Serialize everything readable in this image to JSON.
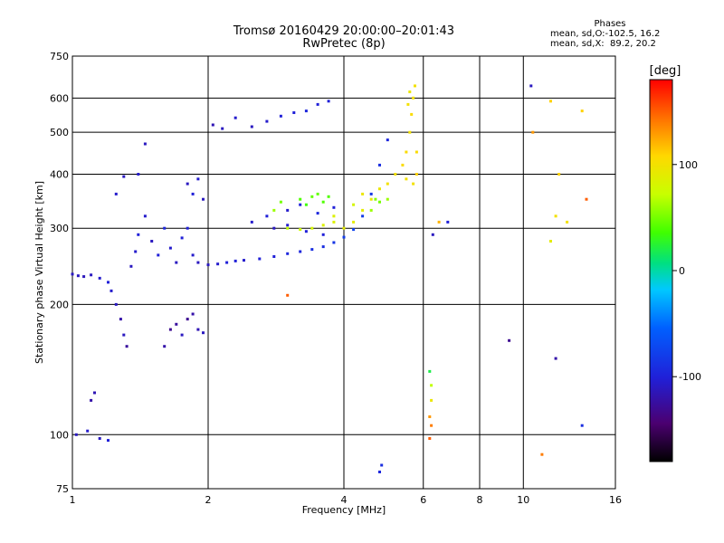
{
  "header": {
    "title_line1": "Tromsø 20160429 20:00:00–20:01:43",
    "title_line2": "RwPretec (8p)"
  },
  "phases_box": {
    "title": "Phases",
    "line1": "mean, sd,O:-102.5, 16.2",
    "line2": "mean, sd,X:  89.2, 20.2"
  },
  "colorbar": {
    "unit": "[deg]",
    "ticks": [
      100,
      0,
      -100
    ],
    "range": [
      -180,
      180
    ]
  },
  "chart_data": {
    "type": "scatter",
    "title": "Tromsø 20160429 20:00:00–20:01:43",
    "subtitle": "RwPretec (8p)",
    "xlabel": "Frequency [MHz]",
    "ylabel": "Stationary phase Virtual Height [km]",
    "xscale": "log",
    "yscale": "log",
    "xlim": [
      1,
      16
    ],
    "ylim": [
      75,
      750
    ],
    "xticks": [
      1,
      2,
      4,
      6,
      8,
      10,
      16
    ],
    "yticks": [
      75,
      100,
      200,
      300,
      400,
      500,
      600,
      750
    ],
    "grid": true,
    "colorbar_label": "[deg]",
    "series": [
      {
        "mode": "O",
        "points": [
          [
            1.0,
            235,
            -110
          ],
          [
            1.03,
            233,
            -110
          ],
          [
            1.06,
            232,
            -112
          ],
          [
            1.1,
            234,
            -110
          ],
          [
            1.15,
            230,
            -105
          ],
          [
            1.2,
            225,
            -100
          ],
          [
            1.22,
            215,
            -105
          ],
          [
            1.25,
            200,
            -110
          ],
          [
            1.28,
            185,
            -120
          ],
          [
            1.3,
            170,
            -110
          ],
          [
            1.32,
            160,
            -125
          ],
          [
            1.35,
            245,
            -110
          ],
          [
            1.38,
            265,
            -105
          ],
          [
            1.4,
            290,
            -100
          ],
          [
            1.45,
            320,
            -105
          ],
          [
            1.5,
            280,
            -110
          ],
          [
            1.55,
            260,
            -100
          ],
          [
            1.6,
            300,
            -95
          ],
          [
            1.65,
            270,
            -105
          ],
          [
            1.7,
            250,
            -110
          ],
          [
            1.75,
            285,
            -100
          ],
          [
            1.8,
            300,
            -100
          ],
          [
            1.85,
            260,
            -105
          ],
          [
            1.9,
            250,
            -110
          ],
          [
            2.0,
            247,
            -110
          ],
          [
            2.1,
            248,
            -105
          ],
          [
            2.2,
            250,
            -100
          ],
          [
            2.3,
            252,
            -100
          ],
          [
            2.4,
            253,
            -105
          ],
          [
            2.6,
            255,
            -100
          ],
          [
            2.8,
            258,
            -100
          ],
          [
            3.0,
            262,
            -95
          ],
          [
            3.2,
            265,
            -95
          ],
          [
            3.4,
            268,
            -90
          ],
          [
            3.6,
            272,
            -90
          ],
          [
            3.8,
            278,
            -85
          ],
          [
            4.0,
            286,
            -80
          ],
          [
            4.2,
            298,
            -75
          ],
          [
            4.4,
            320,
            -80
          ],
          [
            4.6,
            360,
            -85
          ],
          [
            4.8,
            420,
            -90
          ],
          [
            5.0,
            480,
            -95
          ],
          [
            1.1,
            120,
            -120
          ],
          [
            1.12,
            125,
            -115
          ],
          [
            1.02,
            100,
            -110
          ],
          [
            1.08,
            102,
            -105
          ],
          [
            1.15,
            98,
            -110
          ],
          [
            1.2,
            97,
            -100
          ],
          [
            1.6,
            160,
            -120
          ],
          [
            1.65,
            175,
            -130
          ],
          [
            1.7,
            180,
            -125
          ],
          [
            1.75,
            170,
            -110
          ],
          [
            1.8,
            185,
            -130
          ],
          [
            1.85,
            190,
            -120
          ],
          [
            1.9,
            175,
            -115
          ],
          [
            1.95,
            172,
            -110
          ],
          [
            1.8,
            380,
            -110
          ],
          [
            1.9,
            390,
            -105
          ],
          [
            1.85,
            360,
            -100
          ],
          [
            1.95,
            350,
            -110
          ],
          [
            2.05,
            520,
            -115
          ],
          [
            2.15,
            510,
            -110
          ],
          [
            2.3,
            540,
            -105
          ],
          [
            2.5,
            515,
            -110
          ],
          [
            2.7,
            530,
            -105
          ],
          [
            2.9,
            545,
            -100
          ],
          [
            3.1,
            555,
            -100
          ],
          [
            3.3,
            560,
            -95
          ],
          [
            3.5,
            580,
            -100
          ],
          [
            3.7,
            590,
            -100
          ],
          [
            2.5,
            310,
            -105
          ],
          [
            2.7,
            320,
            -100
          ],
          [
            3.0,
            330,
            -105
          ],
          [
            3.2,
            340,
            -100
          ],
          [
            3.5,
            325,
            -95
          ],
          [
            3.8,
            335,
            -100
          ],
          [
            1.45,
            470,
            -110
          ],
          [
            1.4,
            400,
            -105
          ],
          [
            1.3,
            395,
            -110
          ],
          [
            1.25,
            360,
            -105
          ],
          [
            2.8,
            300,
            -110
          ],
          [
            3.0,
            305,
            -105
          ],
          [
            3.3,
            295,
            -100
          ],
          [
            3.6,
            290,
            -100
          ],
          [
            6.3,
            290,
            -110
          ],
          [
            6.8,
            310,
            -100
          ],
          [
            9.3,
            165,
            -130
          ],
          [
            11.8,
            150,
            -120
          ],
          [
            13.5,
            105,
            -90
          ],
          [
            10.4,
            640,
            -110
          ],
          [
            4.8,
            82,
            -95
          ],
          [
            4.85,
            85,
            -90
          ]
        ]
      },
      {
        "mode": "X",
        "points": [
          [
            3.0,
            300,
            70
          ],
          [
            3.2,
            298,
            75
          ],
          [
            3.4,
            300,
            80
          ],
          [
            3.6,
            305,
            85
          ],
          [
            3.8,
            310,
            85
          ],
          [
            4.0,
            300,
            90
          ],
          [
            4.2,
            310,
            90
          ],
          [
            4.4,
            330,
            90
          ],
          [
            4.6,
            350,
            95
          ],
          [
            4.8,
            370,
            95
          ],
          [
            5.0,
            380,
            100
          ],
          [
            5.2,
            400,
            100
          ],
          [
            5.4,
            420,
            105
          ],
          [
            5.5,
            450,
            105
          ],
          [
            5.6,
            500,
            100
          ],
          [
            5.65,
            550,
            105
          ],
          [
            5.7,
            600,
            100
          ],
          [
            5.75,
            640,
            100
          ],
          [
            5.6,
            620,
            95
          ],
          [
            5.55,
            580,
            100
          ],
          [
            5.8,
            450,
            105
          ],
          [
            5.8,
            400,
            110
          ],
          [
            5.7,
            380,
            100
          ],
          [
            5.5,
            390,
            100
          ],
          [
            3.2,
            350,
            40
          ],
          [
            3.4,
            355,
            45
          ],
          [
            3.6,
            345,
            40
          ],
          [
            3.3,
            340,
            35
          ],
          [
            2.9,
            345,
            50
          ],
          [
            2.8,
            330,
            60
          ],
          [
            3.5,
            360,
            45
          ],
          [
            3.7,
            355,
            40
          ],
          [
            4.6,
            330,
            60
          ],
          [
            4.7,
            350,
            55
          ],
          [
            4.8,
            345,
            50
          ],
          [
            5.0,
            350,
            60
          ],
          [
            6.2,
            140,
            20
          ],
          [
            6.25,
            130,
            70
          ],
          [
            6.25,
            120,
            95
          ],
          [
            6.2,
            110,
            130
          ],
          [
            6.25,
            105,
            140
          ],
          [
            6.2,
            98,
            150
          ],
          [
            11.5,
            590,
            110
          ],
          [
            12.0,
            400,
            110
          ],
          [
            11.8,
            320,
            100
          ],
          [
            11.5,
            280,
            90
          ],
          [
            13.8,
            350,
            150
          ],
          [
            10.5,
            500,
            130
          ],
          [
            11.0,
            90,
            140
          ],
          [
            12.5,
            310,
            100
          ],
          [
            13.5,
            560,
            110
          ],
          [
            3.0,
            210,
            150
          ],
          [
            6.5,
            310,
            120
          ],
          [
            3.8,
            320,
            85
          ],
          [
            4.2,
            340,
            80
          ],
          [
            4.4,
            360,
            95
          ]
        ]
      }
    ]
  }
}
